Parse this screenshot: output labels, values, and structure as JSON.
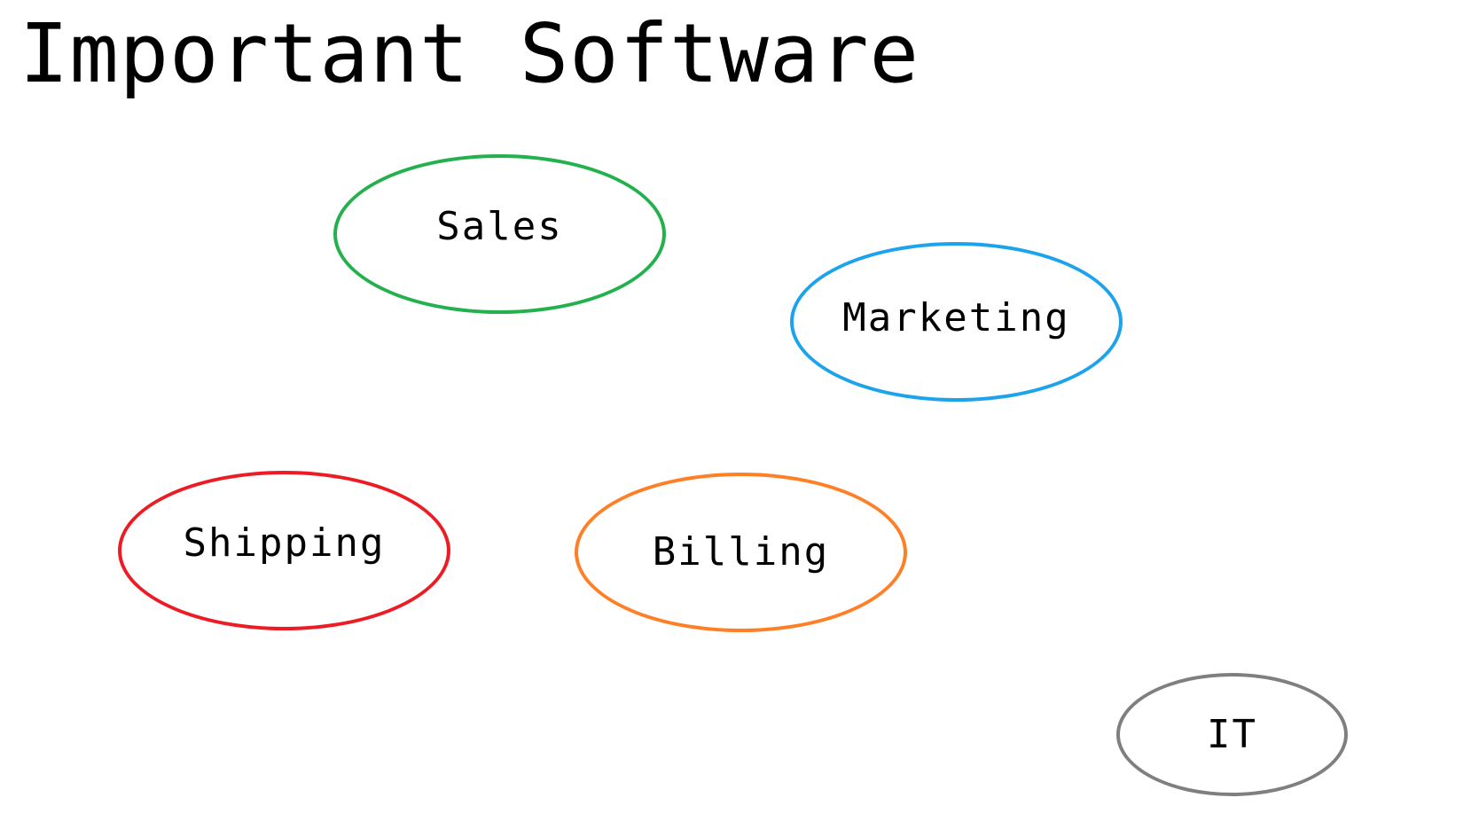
{
  "title": "Important Software",
  "nodes": [
    {
      "id": "sales",
      "label": "Sales",
      "color": "#22b14c"
    },
    {
      "id": "marketing",
      "label": "Marketing",
      "color": "#1ca3ec"
    },
    {
      "id": "shipping",
      "label": "Shipping",
      "color": "#ed1c24"
    },
    {
      "id": "billing",
      "label": "Billing",
      "color": "#ff7f27"
    },
    {
      "id": "it",
      "label": "IT",
      "color": "#7f7f7f"
    }
  ]
}
